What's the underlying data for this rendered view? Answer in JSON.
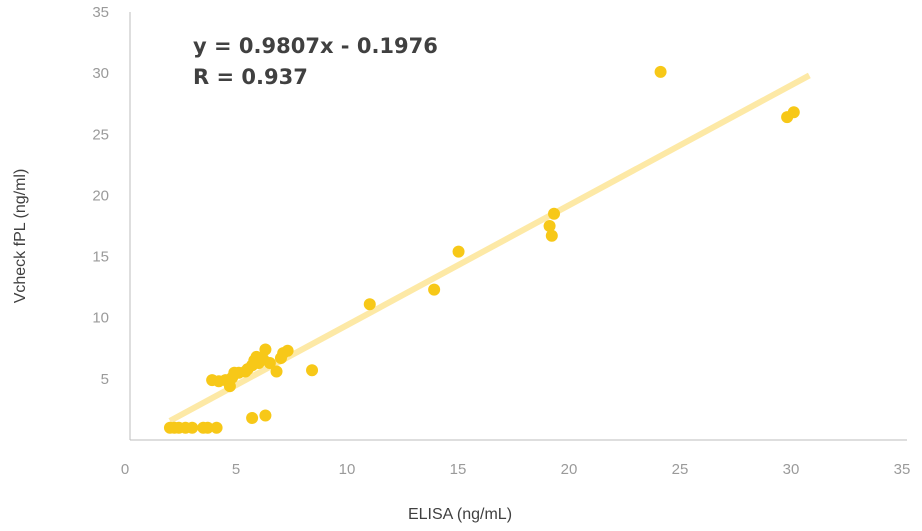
{
  "chart_data": {
    "type": "scatter",
    "xlabel": "ELISA (ng/mL)",
    "ylabel": "Vcheck fPL (ng/ml)",
    "xlim": [
      0,
      35
    ],
    "ylim": [
      0,
      35
    ],
    "x_ticks": [
      "0",
      "5",
      "10",
      "15",
      "20",
      "25",
      "30",
      "35"
    ],
    "y_ticks": [
      "5",
      "10",
      "15",
      "20",
      "25",
      "30",
      "35"
    ],
    "grid": false,
    "trendline": {
      "slope": 0.9807,
      "intercept": -0.1976,
      "x_range": [
        1.8,
        30.6
      ],
      "equation_label": "y = 0.9807x - 0.1976",
      "r_label": "R = 0.937",
      "color": "#fde9a6"
    },
    "series": [
      {
        "color": "#f7c818",
        "points": [
          [
            1.8,
            1.0
          ],
          [
            2.0,
            1.0
          ],
          [
            2.2,
            1.0
          ],
          [
            2.5,
            1.0
          ],
          [
            2.8,
            1.0
          ],
          [
            3.3,
            1.0
          ],
          [
            3.5,
            1.0
          ],
          [
            3.9,
            1.0
          ],
          [
            3.7,
            4.9
          ],
          [
            4.0,
            4.8
          ],
          [
            4.3,
            4.9
          ],
          [
            4.5,
            4.4
          ],
          [
            4.6,
            5.1
          ],
          [
            4.7,
            5.5
          ],
          [
            4.9,
            5.5
          ],
          [
            5.2,
            5.6
          ],
          [
            5.3,
            5.8
          ],
          [
            5.5,
            6.1
          ],
          [
            5.6,
            6.5
          ],
          [
            5.7,
            6.8
          ],
          [
            5.8,
            6.3
          ],
          [
            6.0,
            6.6
          ],
          [
            6.1,
            7.4
          ],
          [
            6.3,
            6.3
          ],
          [
            6.6,
            5.6
          ],
          [
            6.8,
            6.7
          ],
          [
            6.9,
            7.1
          ],
          [
            7.1,
            7.3
          ],
          [
            5.5,
            1.8
          ],
          [
            6.1,
            2.0
          ],
          [
            8.2,
            5.7
          ],
          [
            10.8,
            11.1
          ],
          [
            13.7,
            12.3
          ],
          [
            14.8,
            15.4
          ],
          [
            18.9,
            17.5
          ],
          [
            19.0,
            16.7
          ],
          [
            19.1,
            18.5
          ],
          [
            23.9,
            30.1
          ],
          [
            29.6,
            26.4
          ],
          [
            29.9,
            26.8
          ]
        ]
      }
    ]
  }
}
